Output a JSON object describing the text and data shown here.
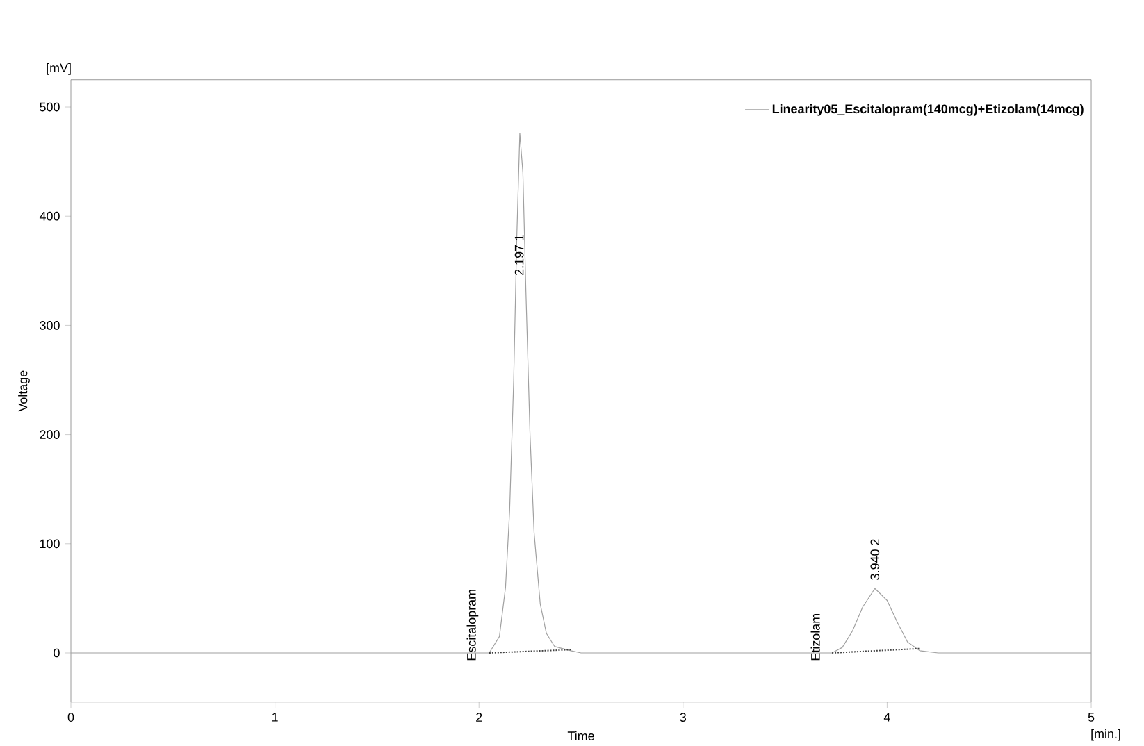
{
  "chart_data": {
    "type": "line",
    "xlabel": "Time",
    "ylabel": "Voltage",
    "xlim": [
      0,
      5
    ],
    "ylim": [
      -45,
      525
    ],
    "xticks": [
      0,
      1,
      2,
      3,
      4,
      5
    ],
    "yticks": [
      0,
      100,
      200,
      300,
      400,
      500
    ],
    "grid": false,
    "legend": "top right",
    "marker": "none",
    "series": [
      {
        "name": "Linearity05_Escitalopram(140mcg)+Etizolam(14mcg)",
        "color": "#a0a0a0",
        "line_style": "solid",
        "x": [
          0,
          2.05,
          2.1,
          2.13,
          2.15,
          2.17,
          2.185,
          2.2,
          2.215,
          2.23,
          2.25,
          2.27,
          2.3,
          2.33,
          2.37,
          2.45,
          2.5,
          3.73,
          3.78,
          3.83,
          3.88,
          3.94,
          4.0,
          4.05,
          4.1,
          4.16,
          4.25,
          5
        ],
        "values": [
          0,
          0,
          15,
          60,
          130,
          250,
          380,
          476,
          440,
          330,
          200,
          110,
          45,
          18,
          6,
          2,
          0,
          0,
          5,
          20,
          42,
          59,
          48,
          28,
          10,
          2,
          0,
          0
        ]
      },
      {
        "color": "#404040",
        "line_style": "dotted",
        "x": [
          2.05,
          2.45
        ],
        "values": [
          0,
          3
        ]
      },
      {
        "color": "#404040",
        "line_style": "dotted",
        "x": [
          3.73,
          4.16
        ],
        "values": [
          0,
          4
        ]
      }
    ],
    "annotations": [
      "[mV]",
      "[min.]",
      {
        "text": "2.197 1",
        "x": 2.197,
        "y": 344
      },
      {
        "text": "Escitalopram",
        "x": 2.05,
        "y": 0
      },
      {
        "text": "3.940 2",
        "x": 3.94,
        "y": 65
      },
      {
        "text": "Etizolam",
        "x": 3.73,
        "y": 0
      }
    ]
  }
}
